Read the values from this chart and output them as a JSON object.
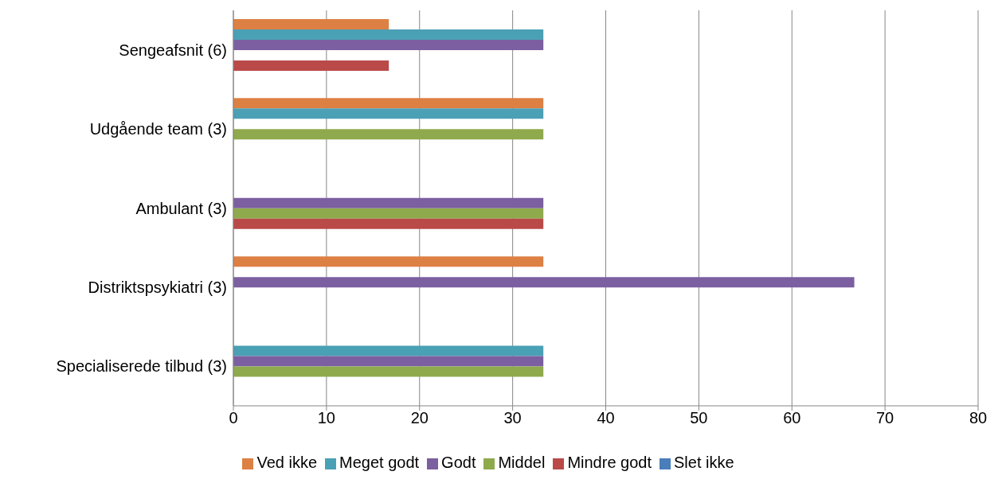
{
  "chart_data": {
    "type": "bar",
    "orientation": "horizontal",
    "categories": [
      "Sengeafsnit (6)",
      "Udgående team (3)",
      "Ambulant (3)",
      "Distriktspsykiatri (3)",
      "Specialiserede tilbud (3)"
    ],
    "series": [
      {
        "name": "Ved ikke",
        "color": "#dd8044",
        "values": [
          16.7,
          33.3,
          null,
          33.3,
          null
        ]
      },
      {
        "name": "Meget godt",
        "color": "#4aa0b5",
        "values": [
          33.3,
          33.3,
          null,
          null,
          33.3
        ]
      },
      {
        "name": "Godt",
        "color": "#7b5fa0",
        "values": [
          33.3,
          null,
          33.3,
          66.7,
          33.3
        ]
      },
      {
        "name": "Middel",
        "color": "#8faa4c",
        "values": [
          null,
          33.3,
          33.3,
          null,
          33.3
        ]
      },
      {
        "name": "Mindre godt",
        "color": "#b94a48",
        "values": [
          16.7,
          null,
          33.3,
          null,
          null
        ]
      },
      {
        "name": "Slet ikke",
        "color": "#4a7ebb",
        "values": [
          null,
          null,
          null,
          null,
          null
        ]
      }
    ],
    "xlim": [
      0,
      80
    ],
    "xticks": [
      0,
      10,
      20,
      30,
      40,
      50,
      60,
      70,
      80
    ],
    "grid": "x",
    "legend": "bottom"
  }
}
